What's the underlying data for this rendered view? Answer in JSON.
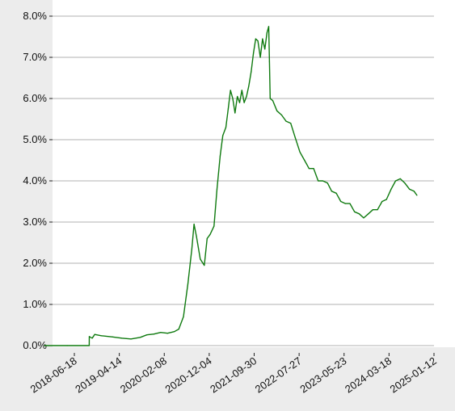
{
  "chart_data": {
    "type": "line",
    "title": "",
    "xlabel": "",
    "ylabel": "",
    "grid": "horizontal",
    "legend": "none",
    "ylim": [
      0.0,
      0.08
    ],
    "xlim": [
      "2017-09-15",
      "2025-01-12"
    ],
    "y_ticks": [
      {
        "value": 0.0,
        "label": "0.0%"
      },
      {
        "value": 0.01,
        "label": "1.0%"
      },
      {
        "value": 0.02,
        "label": "2.0%"
      },
      {
        "value": 0.03,
        "label": "3.0%"
      },
      {
        "value": 0.04,
        "label": "4.0%"
      },
      {
        "value": 0.05,
        "label": "5.0%"
      },
      {
        "value": 0.06,
        "label": "6.0%"
      },
      {
        "value": 0.07,
        "label": "7.0%"
      },
      {
        "value": 0.08,
        "label": "8.0%"
      }
    ],
    "x_ticks": [
      {
        "value": "2018-06-18",
        "label": "2018-06-18"
      },
      {
        "value": "2019-04-14",
        "label": "2019-04-14"
      },
      {
        "value": "2020-02-08",
        "label": "2020-02-08"
      },
      {
        "value": "2020-12-04",
        "label": "2020-12-04"
      },
      {
        "value": "2021-09-30",
        "label": "2021-09-30"
      },
      {
        "value": "2022-07-27",
        "label": "2022-07-27"
      },
      {
        "value": "2023-05-23",
        "label": "2023-05-23"
      },
      {
        "value": "2024-03-18",
        "label": "2024-03-18"
      },
      {
        "value": "2025-01-12",
        "label": "2025-01-12"
      }
    ],
    "series": [
      {
        "color": "#0f7a0f",
        "points": [
          [
            "2017-12-01",
            0.0
          ],
          [
            "2018-05-01",
            0.0
          ],
          [
            "2018-09-25",
            0.0
          ],
          [
            "2018-09-26",
            0.0022
          ],
          [
            "2018-10-15",
            0.0018
          ],
          [
            "2018-11-01",
            0.0027
          ],
          [
            "2018-12-15",
            0.0024
          ],
          [
            "2019-03-01",
            0.0021
          ],
          [
            "2019-05-01",
            0.0018
          ],
          [
            "2019-07-01",
            0.0016
          ],
          [
            "2019-09-01",
            0.002
          ],
          [
            "2019-10-15",
            0.0026
          ],
          [
            "2019-12-01",
            0.0028
          ],
          [
            "2020-01-15",
            0.0032
          ],
          [
            "2020-03-01",
            0.003
          ],
          [
            "2020-04-15",
            0.0034
          ],
          [
            "2020-05-15",
            0.004
          ],
          [
            "2020-06-15",
            0.007
          ],
          [
            "2020-07-15",
            0.015
          ],
          [
            "2020-08-10",
            0.0235
          ],
          [
            "2020-08-25",
            0.0295
          ],
          [
            "2020-09-10",
            0.0265
          ],
          [
            "2020-10-05",
            0.021
          ],
          [
            "2020-11-01",
            0.0195
          ],
          [
            "2020-11-20",
            0.026
          ],
          [
            "2020-12-10",
            0.027
          ],
          [
            "2021-01-05",
            0.029
          ],
          [
            "2021-01-25",
            0.038
          ],
          [
            "2021-02-15",
            0.046
          ],
          [
            "2021-03-05",
            0.051
          ],
          [
            "2021-03-25",
            0.053
          ],
          [
            "2021-04-10",
            0.0575
          ],
          [
            "2021-04-25",
            0.062
          ],
          [
            "2021-05-10",
            0.06
          ],
          [
            "2021-05-25",
            0.0565
          ],
          [
            "2021-06-10",
            0.0605
          ],
          [
            "2021-06-25",
            0.059
          ],
          [
            "2021-07-10",
            0.062
          ],
          [
            "2021-07-25",
            0.059
          ],
          [
            "2021-08-10",
            0.0605
          ],
          [
            "2021-08-25",
            0.063
          ],
          [
            "2021-09-10",
            0.0665
          ],
          [
            "2021-09-25",
            0.071
          ],
          [
            "2021-10-10",
            0.0745
          ],
          [
            "2021-10-25",
            0.074
          ],
          [
            "2021-11-10",
            0.07
          ],
          [
            "2021-11-25",
            0.0745
          ],
          [
            "2021-12-10",
            0.072
          ],
          [
            "2021-12-25",
            0.076
          ],
          [
            "2022-01-05",
            0.0775
          ],
          [
            "2022-01-10",
            0.069
          ],
          [
            "2022-01-15",
            0.06
          ],
          [
            "2022-02-01",
            0.0595
          ],
          [
            "2022-03-01",
            0.057
          ],
          [
            "2022-04-01",
            0.056
          ],
          [
            "2022-05-01",
            0.0545
          ],
          [
            "2022-06-01",
            0.054
          ],
          [
            "2022-07-01",
            0.0505
          ],
          [
            "2022-08-01",
            0.047
          ],
          [
            "2022-09-01",
            0.045
          ],
          [
            "2022-10-01",
            0.043
          ],
          [
            "2022-11-01",
            0.043
          ],
          [
            "2022-12-01",
            0.04
          ],
          [
            "2023-01-01",
            0.04
          ],
          [
            "2023-02-01",
            0.0395
          ],
          [
            "2023-03-01",
            0.0375
          ],
          [
            "2023-04-01",
            0.037
          ],
          [
            "2023-05-01",
            0.035
          ],
          [
            "2023-06-01",
            0.0345
          ],
          [
            "2023-07-01",
            0.0345
          ],
          [
            "2023-08-01",
            0.0325
          ],
          [
            "2023-09-01",
            0.032
          ],
          [
            "2023-10-01",
            0.031
          ],
          [
            "2023-11-01",
            0.032
          ],
          [
            "2023-12-01",
            0.033
          ],
          [
            "2024-01-01",
            0.033
          ],
          [
            "2024-02-01",
            0.035
          ],
          [
            "2024-03-01",
            0.0355
          ],
          [
            "2024-04-01",
            0.038
          ],
          [
            "2024-05-01",
            0.04
          ],
          [
            "2024-06-01",
            0.0405
          ],
          [
            "2024-07-01",
            0.0395
          ],
          [
            "2024-08-01",
            0.038
          ],
          [
            "2024-09-01",
            0.0375
          ],
          [
            "2024-09-20",
            0.0365
          ]
        ]
      }
    ]
  }
}
